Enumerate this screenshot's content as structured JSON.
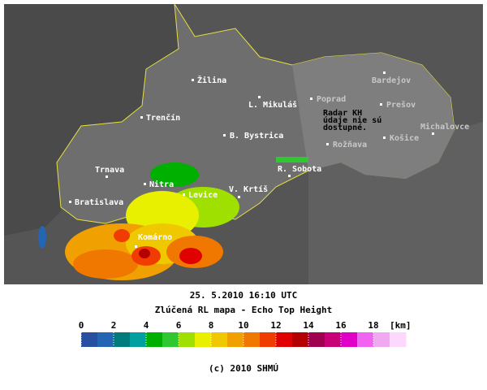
{
  "map": {
    "cities": [
      "Žilina",
      "Trenčín",
      "L. Mikuláš",
      "B. Bystrica",
      "Poprad",
      "Bardejov",
      "Prešov",
      "Michalovce",
      "Košice",
      "Rožňava",
      "R. Sobota",
      "Trnava",
      "Nitra",
      "Levice",
      "V. Krtíš",
      "Bratislava",
      "Komárno"
    ],
    "notice": [
      "Radar KH",
      "údaje nie sú",
      "dostupné."
    ]
  },
  "caption": {
    "datetime": "25. 5.2010 16:10 UTC",
    "title": "Zlúčená RL mapa - Echo Top Height",
    "copyright": "(c) 2010 SHMÚ"
  },
  "legend": {
    "range": [
      0,
      20
    ],
    "ticks": [
      0,
      2,
      4,
      6,
      8,
      10,
      12,
      14,
      16,
      18
    ],
    "unit": "[km]",
    "colors": [
      "#2850a0",
      "#2466b4",
      "#007c7c",
      "#00a0a0",
      "#00b000",
      "#30c830",
      "#a0e000",
      "#e8f000",
      "#f0c800",
      "#f0a000",
      "#f07800",
      "#f03c00",
      "#e00000",
      "#b40000",
      "#a00050",
      "#c80078",
      "#e000c8",
      "#f064f0",
      "#f0a8f0",
      "#fcd8fc"
    ]
  }
}
